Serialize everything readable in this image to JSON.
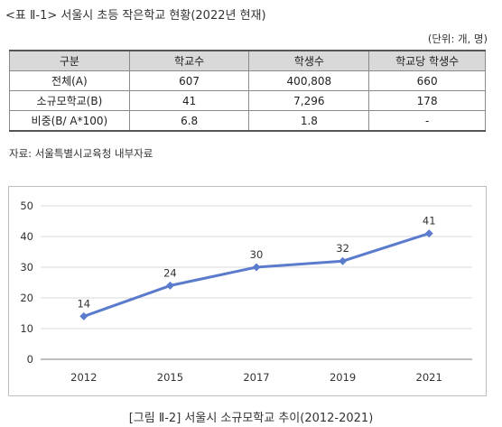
{
  "title": "<표 Ⅱ-1> 서울시 초등 작은학교 현황(2022년 현재)",
  "unit_note": "(단위: 개, 명)",
  "table": {
    "headers": [
      "구분",
      "학교수",
      "학생수",
      "학교당 학생수"
    ],
    "rows": [
      [
        "전체(A)",
        "607",
        "400,808",
        "660"
      ],
      [
        "소규모학교(B)",
        "41",
        "7,296",
        "178"
      ],
      [
        "비중(B/ A*100)",
        "6.8",
        "1.8",
        "-"
      ]
    ]
  },
  "source": "자료: 서울특별시교육청 내부자료",
  "caption": "[그림 Ⅱ-2] 서울시 소규모학교 추이(2012-2021)",
  "chart_data": {
    "type": "line",
    "title": "",
    "xlabel": "",
    "ylabel": "",
    "categories": [
      "2012",
      "2015",
      "2017",
      "2019",
      "2021"
    ],
    "series": [
      {
        "values": [
          14,
          24,
          30,
          32,
          41
        ]
      }
    ],
    "ylim": [
      0,
      50
    ],
    "yticks": [
      0,
      10,
      20,
      30,
      40,
      50
    ],
    "grid": true,
    "legend": "none",
    "color": "#5b7ccc"
  }
}
